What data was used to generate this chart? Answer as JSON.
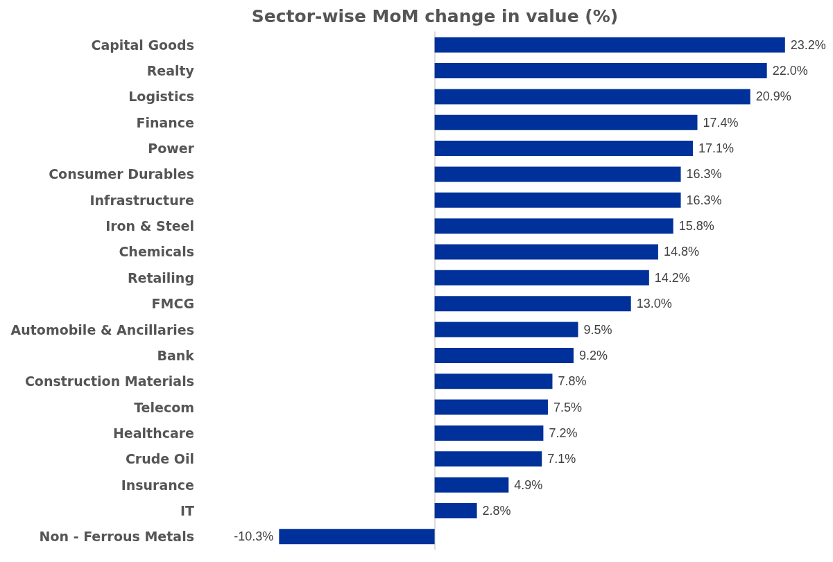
{
  "chart_data": {
    "type": "bar",
    "orientation": "horizontal",
    "title": "Sector-wise MoM change in value (%)",
    "categories": [
      "Capital Goods",
      "Realty",
      "Logistics",
      "Finance",
      "Power",
      "Consumer Durables",
      "Infrastructure",
      "Iron & Steel",
      "Chemicals",
      "Retailing",
      "FMCG",
      "Automobile & Ancillaries",
      "Bank",
      "Construction Materials",
      "Telecom",
      "Healthcare",
      "Crude Oil",
      "Insurance",
      "IT",
      "Non - Ferrous Metals"
    ],
    "values": [
      23.2,
      22.0,
      20.9,
      17.4,
      17.1,
      16.3,
      16.3,
      15.8,
      14.8,
      14.2,
      13.0,
      9.5,
      9.2,
      7.8,
      7.5,
      7.2,
      7.1,
      4.9,
      2.8,
      -10.3
    ],
    "value_labels": [
      "23.2%",
      "22.0%",
      "20.9%",
      "17.4%",
      "17.1%",
      "16.3%",
      "16.3%",
      "15.8%",
      "14.8%",
      "14.2%",
      "13.0%",
      "9.5%",
      "9.2%",
      "7.8%",
      "7.5%",
      "7.2%",
      "7.1%",
      "4.9%",
      "2.8%",
      "-10.3%"
    ],
    "color": "#00309a"
  }
}
